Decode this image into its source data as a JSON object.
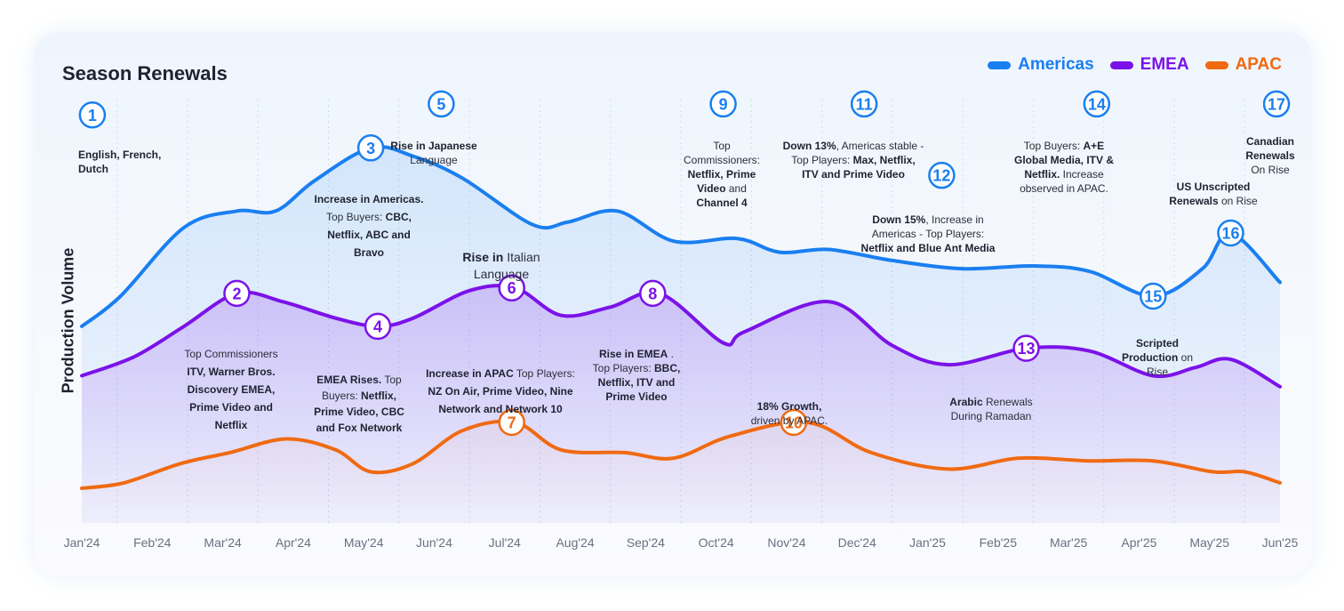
{
  "title": "Season Renewals",
  "legend": [
    {
      "label": "Americas",
      "color": "#1A7FF0"
    },
    {
      "label": "EMEA",
      "color": "#7B12E8"
    },
    {
      "label": "APAC",
      "color": "#F06A12"
    }
  ],
  "chart_data": {
    "type": "area",
    "ylabel": "Production Volume",
    "categories": [
      "Jan'24",
      "Feb'24",
      "Mar'24",
      "Apr'24",
      "May'24",
      "Jun'24",
      "Jul'24",
      "Aug'24",
      "Sep'24",
      "Oct'24",
      "Nov'24",
      "Dec'24",
      "Jan'25",
      "Feb'25",
      "Mar'25",
      "Apr'25",
      "May'25",
      "Jun'25"
    ],
    "series": [
      {
        "name": "Americas",
        "color": "#1A7FF0",
        "points": [
          [
            0,
            70
          ],
          [
            0.55,
            81
          ],
          [
            1.45,
            106
          ],
          [
            2.2,
            112
          ],
          [
            2.75,
            112
          ],
          [
            3.3,
            123
          ],
          [
            4.1,
            135
          ],
          [
            4.7,
            132
          ],
          [
            5.4,
            124
          ],
          [
            6.4,
            107
          ],
          [
            6.9,
            108
          ],
          [
            7.6,
            112
          ],
          [
            8.4,
            101
          ],
          [
            9.3,
            102
          ],
          [
            9.9,
            97
          ],
          [
            10.6,
            98
          ],
          [
            11.5,
            94
          ],
          [
            12.5,
            91
          ],
          [
            13.5,
            92
          ],
          [
            14.3,
            90
          ],
          [
            15.2,
            81
          ],
          [
            15.9,
            91
          ],
          [
            16.3,
            104
          ],
          [
            17,
            86
          ]
        ]
      },
      {
        "name": "EMEA",
        "color": "#7B12E8",
        "points": [
          [
            0,
            52
          ],
          [
            0.75,
            59
          ],
          [
            1.45,
            70
          ],
          [
            2.2,
            82
          ],
          [
            2.85,
            79
          ],
          [
            3.6,
            73
          ],
          [
            4.2,
            70
          ],
          [
            4.7,
            73
          ],
          [
            5.5,
            83
          ],
          [
            6.15,
            84
          ],
          [
            6.8,
            74
          ],
          [
            7.5,
            77
          ],
          [
            8.2,
            82
          ],
          [
            9.1,
            64
          ],
          [
            9.4,
            68
          ],
          [
            10.6,
            79
          ],
          [
            11.5,
            63
          ],
          [
            12.3,
            56
          ],
          [
            13.4,
            62
          ],
          [
            14.3,
            61
          ],
          [
            15.2,
            52
          ],
          [
            15.8,
            55
          ],
          [
            16.3,
            58
          ],
          [
            17,
            48
          ]
        ]
      },
      {
        "name": "APAC",
        "color": "#F06A12",
        "points": [
          [
            0,
            11
          ],
          [
            0.6,
            13
          ],
          [
            1.4,
            20
          ],
          [
            2.1,
            24
          ],
          [
            2.9,
            29
          ],
          [
            3.6,
            25
          ],
          [
            4.1,
            17
          ],
          [
            4.7,
            20
          ],
          [
            5.4,
            32
          ],
          [
            6.15,
            35
          ],
          [
            6.8,
            25
          ],
          [
            7.7,
            24
          ],
          [
            8.4,
            22
          ],
          [
            9.2,
            30
          ],
          [
            10.3,
            35
          ],
          [
            11.2,
            24
          ],
          [
            12.3,
            18
          ],
          [
            13.3,
            22
          ],
          [
            14.3,
            21
          ],
          [
            15.2,
            21
          ],
          [
            16.05,
            17
          ],
          [
            16.5,
            17
          ],
          [
            17,
            13
          ]
        ]
      }
    ],
    "markers": [
      {
        "n": "1",
        "series": "Americas",
        "x": 0.15,
        "y": 147
      },
      {
        "n": "2",
        "series": "EMEA",
        "x": 2.2,
        "y": 82
      },
      {
        "n": "3",
        "series": "Americas",
        "x": 4.1,
        "y": 135
      },
      {
        "n": "4",
        "series": "EMEA",
        "x": 4.2,
        "y": 70
      },
      {
        "n": "5",
        "series": "Americas",
        "x": 5.1,
        "y": 151
      },
      {
        "n": "6",
        "series": "EMEA",
        "x": 6.1,
        "y": 84
      },
      {
        "n": "7",
        "series": "APAC",
        "x": 6.1,
        "y": 35
      },
      {
        "n": "8",
        "series": "EMEA",
        "x": 8.1,
        "y": 82
      },
      {
        "n": "9",
        "series": "Americas",
        "x": 9.1,
        "y": 151
      },
      {
        "n": "10",
        "series": "APAC",
        "x": 10.1,
        "y": 35
      },
      {
        "n": "11",
        "series": "Americas",
        "x": 11.1,
        "y": 151
      },
      {
        "n": "12",
        "series": "Americas",
        "x": 12.2,
        "y": 125
      },
      {
        "n": "13",
        "series": "EMEA",
        "x": 13.4,
        "y": 62
      },
      {
        "n": "14",
        "series": "Americas",
        "x": 14.4,
        "y": 151
      },
      {
        "n": "15",
        "series": "Americas",
        "x": 15.2,
        "y": 81
      },
      {
        "n": "16",
        "series": "Americas",
        "x": 16.3,
        "y": 104
      },
      {
        "n": "17",
        "series": "Americas",
        "x": 16.95,
        "y": 151
      }
    ]
  },
  "annotations": [
    {
      "parts": [
        {
          "t": "English, French, Dutch",
          "b": true
        }
      ]
    },
    {
      "parts": [
        {
          "t": "Top Commissioners ",
          "b": false
        },
        {
          "t": "ITV, Warner Bros. Discovery EMEA, Prime Video and Netflix",
          "b": true
        }
      ]
    },
    {
      "parts": [
        {
          "t": "Increase in Americas.",
          "b": true
        },
        {
          "t": " Top Buyers: ",
          "b": false
        },
        {
          "t": "CBC, Netflix, ABC and Bravo",
          "b": true
        }
      ]
    },
    {
      "parts": [
        {
          "t": "EMEA Rises.",
          "b": true
        },
        {
          "t": " Top Buyers: ",
          "b": false
        },
        {
          "t": "Netflix, Prime Video, CBC and Fox Network",
          "b": true
        }
      ]
    },
    {
      "parts": [
        {
          "t": "Rise in Japanese",
          "b": true
        },
        {
          "t": " Language",
          "b": false
        }
      ]
    },
    {
      "parts": [
        {
          "t": "Rise in",
          "b": true
        },
        {
          "t": " Italian Language",
          "b": false
        }
      ]
    },
    {
      "parts": [
        {
          "t": "Increase in APAC",
          "b": true
        },
        {
          "t": " Top Players: ",
          "b": false
        },
        {
          "t": "NZ On Air, Prime Video, Nine Network and Network 10",
          "b": true
        }
      ]
    },
    {
      "parts": [
        {
          "t": "Rise in EMEA",
          "b": true
        },
        {
          "t": " . Top Players: ",
          "b": false
        },
        {
          "t": "BBC, Netflix, ITV and Prime Video",
          "b": true
        }
      ]
    },
    {
      "parts": [
        {
          "t": "Top Commissioners: ",
          "b": false
        },
        {
          "t": "Netflix, Prime Video",
          "b": true
        },
        {
          "t": " and ",
          "b": false
        },
        {
          "t": "Channel 4",
          "b": true
        }
      ]
    },
    {
      "parts": [
        {
          "t": "18% Growth,",
          "b": true
        },
        {
          "t": " driven by APAC.",
          "b": false
        }
      ]
    },
    {
      "parts": [
        {
          "t": "Down 13%",
          "b": true
        },
        {
          "t": ", Americas stable - Top Players: ",
          "b": false
        },
        {
          "t": "Max, Netflix, ITV and Prime Video",
          "b": true
        }
      ]
    },
    {
      "parts": [
        {
          "t": "Down 15%",
          "b": true
        },
        {
          "t": ", Increase in Americas - Top Players: ",
          "b": false
        },
        {
          "t": "Netflix and Blue Ant Media",
          "b": true
        }
      ]
    },
    {
      "parts": [
        {
          "t": "Arabic",
          "b": true
        },
        {
          "t": " Renewals During Ramadan",
          "b": false
        }
      ]
    },
    {
      "parts": [
        {
          "t": "Top Buyers: ",
          "b": false
        },
        {
          "t": "A+E Global Media, ITV & Netflix.",
          "b": true
        },
        {
          "t": " Increase observed in APAC.",
          "b": false
        }
      ]
    },
    {
      "parts": [
        {
          "t": "Scripted Production",
          "b": true
        },
        {
          "t": " on Rise",
          "b": false
        }
      ]
    },
    {
      "parts": [
        {
          "t": "US Unscripted Renewals",
          "b": true
        },
        {
          "t": " on Rise",
          "b": false
        }
      ]
    },
    {
      "parts": [
        {
          "t": "Canadian Renewals",
          "b": true
        },
        {
          "t": " On Rise",
          "b": false
        }
      ]
    }
  ]
}
